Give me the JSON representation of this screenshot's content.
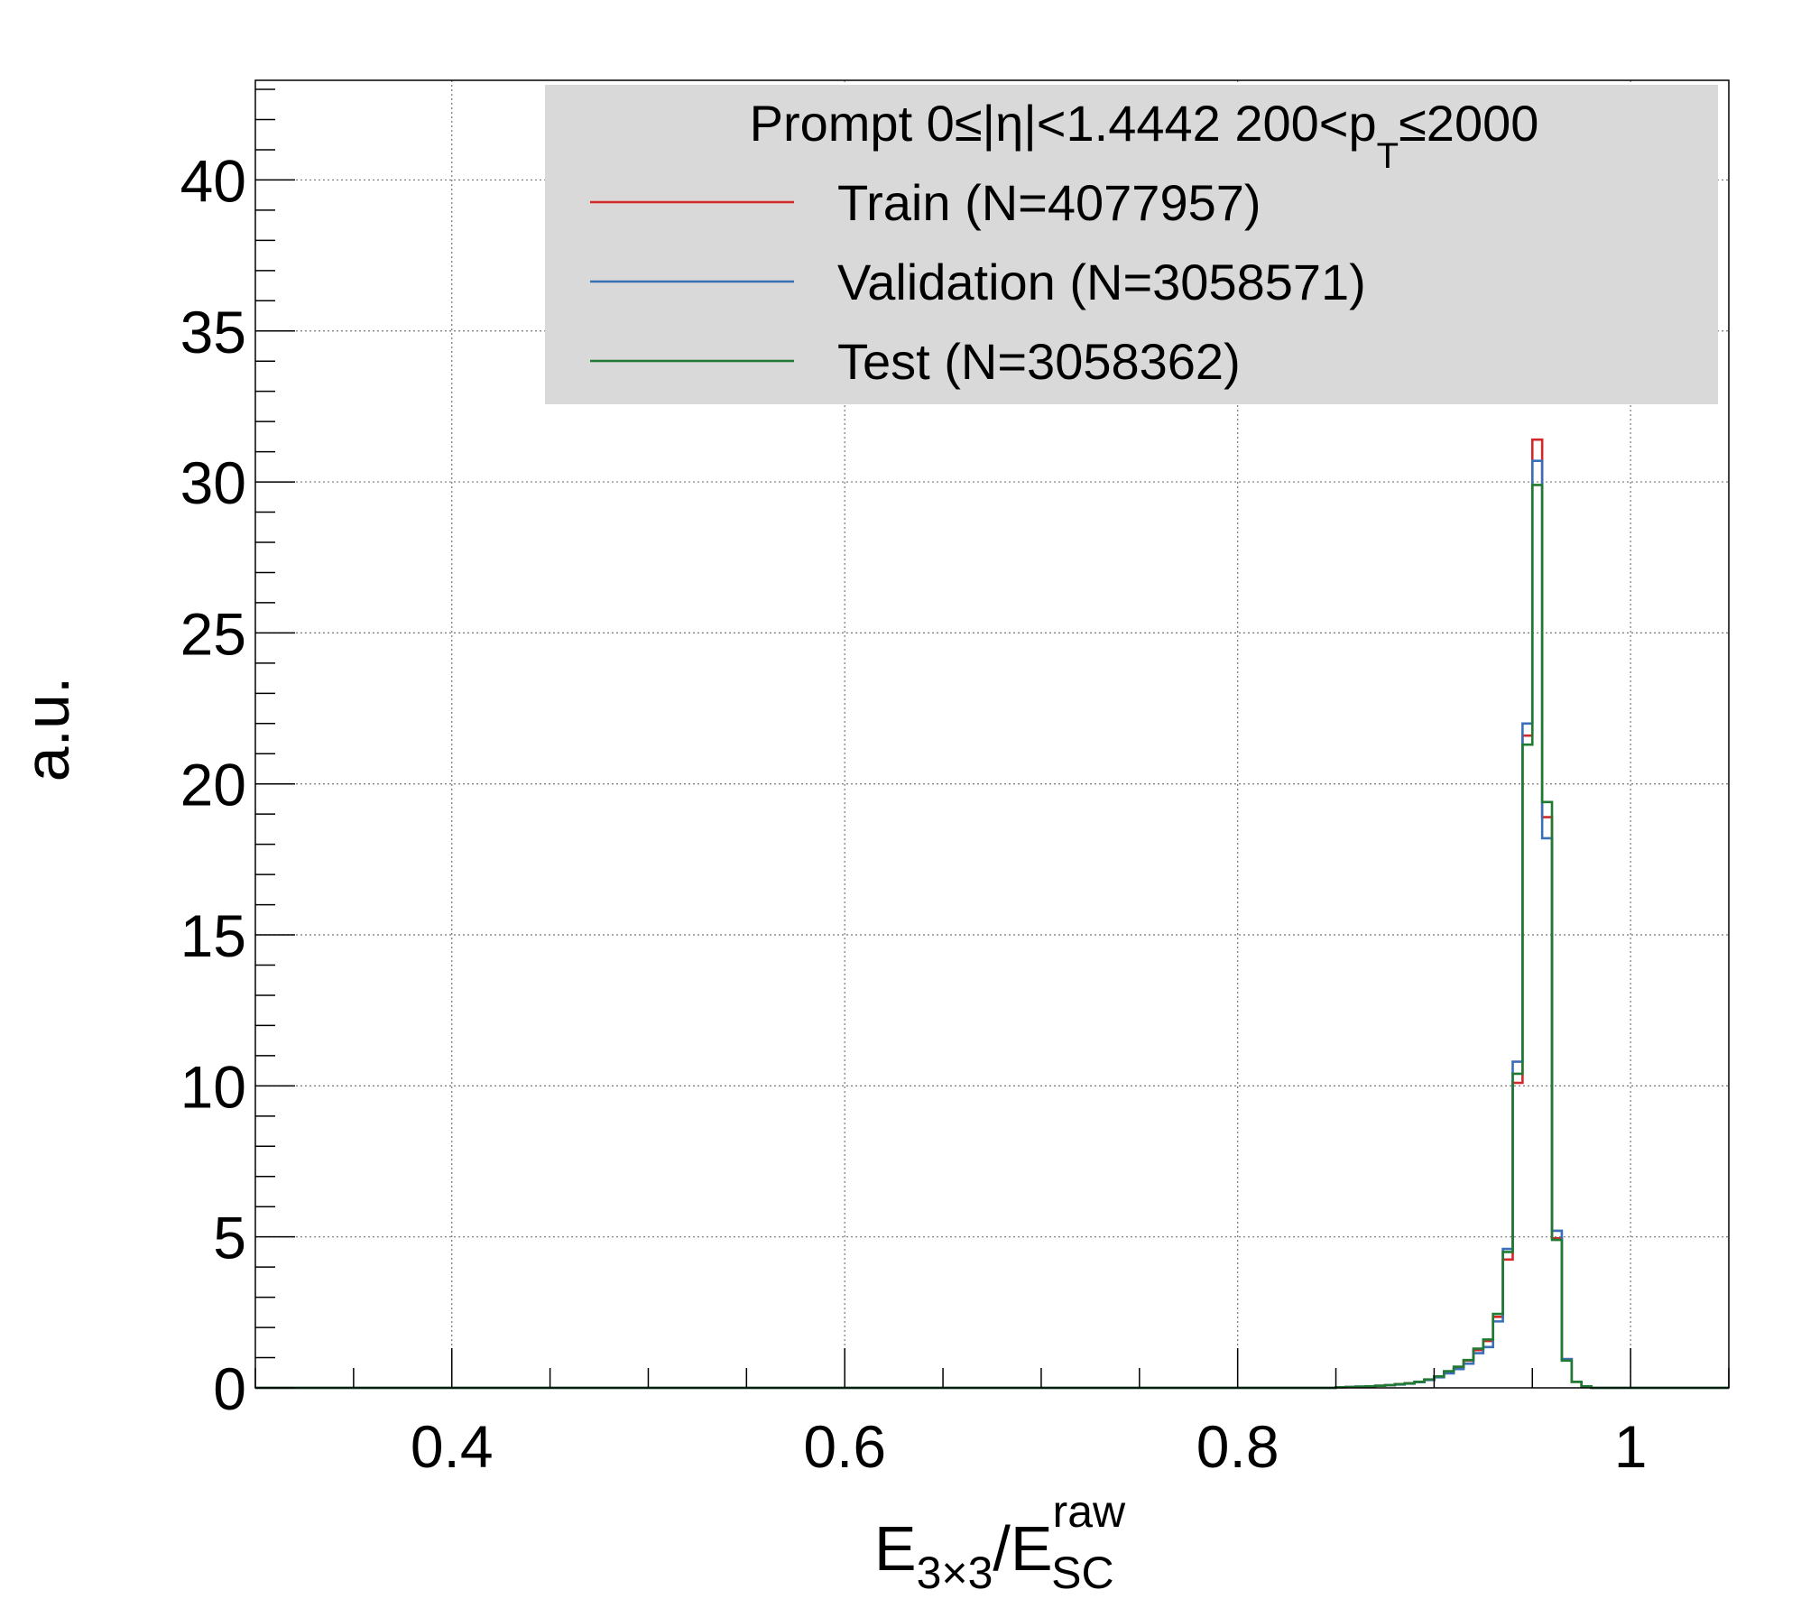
{
  "chart_data": {
    "type": "line",
    "style": "step-histogram",
    "xlabel": {
      "main": "E",
      "sub1": "3×3",
      "slash": "/E",
      "sup2": "raw",
      "sub2": "SC"
    },
    "ylabel": "a.u.",
    "xlim": [
      0.3,
      1.05
    ],
    "ylim": [
      0,
      43.3
    ],
    "x_ticks": [
      "0.4",
      "0.6",
      "0.8",
      "1"
    ],
    "x_tick_values": [
      0.4,
      0.6,
      0.8,
      1.0
    ],
    "y_ticks": [
      "0",
      "5",
      "10",
      "15",
      "20",
      "25",
      "30",
      "35",
      "40"
    ],
    "y_tick_values": [
      0,
      5,
      10,
      15,
      20,
      25,
      30,
      35,
      40
    ],
    "grid": true,
    "legend": {
      "placement": "top-right",
      "header": {
        "pre": "Prompt  0≤|η|<1.4442  200<p",
        "sub": "T",
        "post": "≤2000"
      }
    },
    "bin_edges": [
      0.85,
      0.855,
      0.86,
      0.865,
      0.87,
      0.875,
      0.88,
      0.885,
      0.89,
      0.895,
      0.9,
      0.905,
      0.91,
      0.915,
      0.92,
      0.925,
      0.93,
      0.935,
      0.94,
      0.945,
      0.95,
      0.955,
      0.96,
      0.965,
      0.97,
      0.975,
      0.98
    ],
    "series": [
      {
        "name": "Train (N=4077957)",
        "color": "#d62728",
        "values": [
          0.02,
          0.03,
          0.04,
          0.05,
          0.07,
          0.09,
          0.12,
          0.15,
          0.2,
          0.27,
          0.37,
          0.52,
          0.68,
          0.9,
          1.25,
          1.55,
          2.35,
          4.25,
          10.1,
          21.6,
          31.4,
          18.9,
          4.95,
          0.95,
          0.2,
          0.05
        ]
      },
      {
        "name": "Validation (N=3058571)",
        "color": "#3a6fb7",
        "values": [
          0.02,
          0.03,
          0.04,
          0.05,
          0.07,
          0.09,
          0.11,
          0.14,
          0.19,
          0.26,
          0.35,
          0.48,
          0.62,
          0.8,
          1.15,
          1.35,
          2.2,
          4.6,
          10.8,
          22.0,
          30.7,
          18.2,
          5.2,
          0.95,
          0.2,
          0.05
        ]
      },
      {
        "name": "Test (N=3058362)",
        "color": "#1f7a32",
        "values": [
          0.02,
          0.03,
          0.04,
          0.05,
          0.07,
          0.09,
          0.12,
          0.15,
          0.2,
          0.28,
          0.38,
          0.55,
          0.7,
          0.92,
          1.3,
          1.6,
          2.45,
          4.5,
          10.4,
          21.3,
          29.9,
          19.4,
          4.9,
          0.9,
          0.2,
          0.05
        ]
      }
    ]
  }
}
